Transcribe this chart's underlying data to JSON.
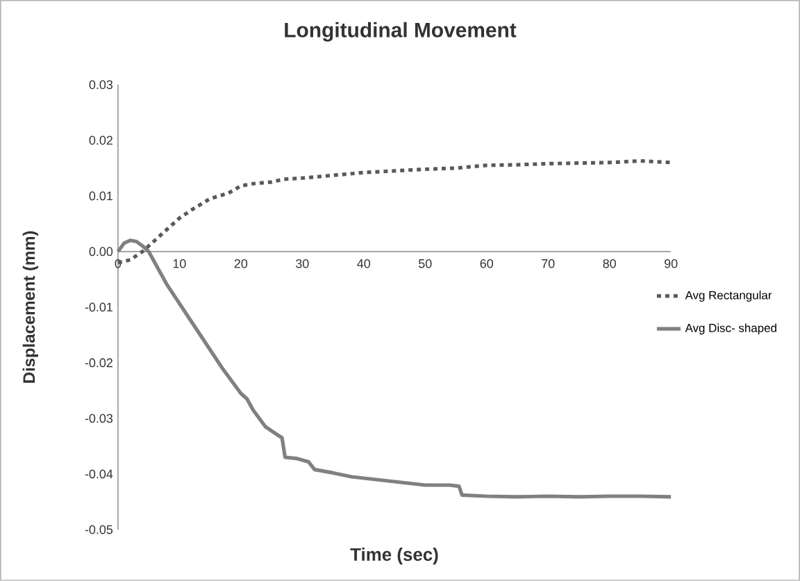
{
  "chart_data": {
    "type": "line",
    "title": "Longitudinal Movement",
    "xlabel": "Time (sec)",
    "ylabel": "Displacement (mm)",
    "xlim": [
      0,
      90
    ],
    "ylim": [
      -0.05,
      0.03
    ],
    "xticks": [
      0,
      10,
      20,
      30,
      40,
      50,
      60,
      70,
      80,
      90
    ],
    "yticks": [
      -0.05,
      -0.04,
      -0.03,
      -0.02,
      -0.01,
      {
        "value": 0,
        "label": "0.00"
      },
      0.01,
      0.02,
      0.03
    ],
    "legend": "right",
    "grid": false,
    "series": [
      {
        "name": "Avg Rectangular",
        "color": "#595959",
        "line_style": "dashed",
        "x": [
          0,
          2,
          4,
          6,
          8,
          10,
          12,
          15,
          18,
          20,
          22,
          25,
          27,
          30,
          35,
          40,
          45,
          50,
          55,
          60,
          65,
          70,
          75,
          80,
          85,
          90
        ],
        "values": [
          -0.002,
          -0.0015,
          0.0,
          0.002,
          0.004,
          0.006,
          0.0075,
          0.0095,
          0.0105,
          0.0118,
          0.0122,
          0.0125,
          0.013,
          0.0132,
          0.0137,
          0.0142,
          0.0145,
          0.0148,
          0.015,
          0.0155,
          0.0156,
          0.0158,
          0.0159,
          0.016,
          0.0163,
          0.016
        ]
      },
      {
        "name": "Avg Disc- shaped",
        "color": "#808080",
        "line_style": "solid",
        "x": [
          0,
          1,
          2,
          3,
          4,
          5,
          6,
          8,
          11,
          14,
          17,
          20,
          21,
          22,
          24,
          26,
          26.7,
          27.2,
          29,
          31,
          32,
          35,
          38,
          42,
          46,
          50,
          54,
          55.5,
          56,
          60,
          65,
          70,
          75,
          80,
          85,
          90
        ],
        "values": [
          0.0,
          0.0015,
          0.002,
          0.0018,
          0.001,
          0.0,
          -0.002,
          -0.006,
          -0.011,
          -0.016,
          -0.021,
          -0.0255,
          -0.0265,
          -0.0285,
          -0.0315,
          -0.033,
          -0.0335,
          -0.037,
          -0.0372,
          -0.0378,
          -0.0392,
          -0.0398,
          -0.0405,
          -0.041,
          -0.0415,
          -0.042,
          -0.042,
          -0.0422,
          -0.0438,
          -0.044,
          -0.0441,
          -0.044,
          -0.0441,
          -0.044,
          -0.044,
          -0.0441
        ]
      }
    ]
  }
}
